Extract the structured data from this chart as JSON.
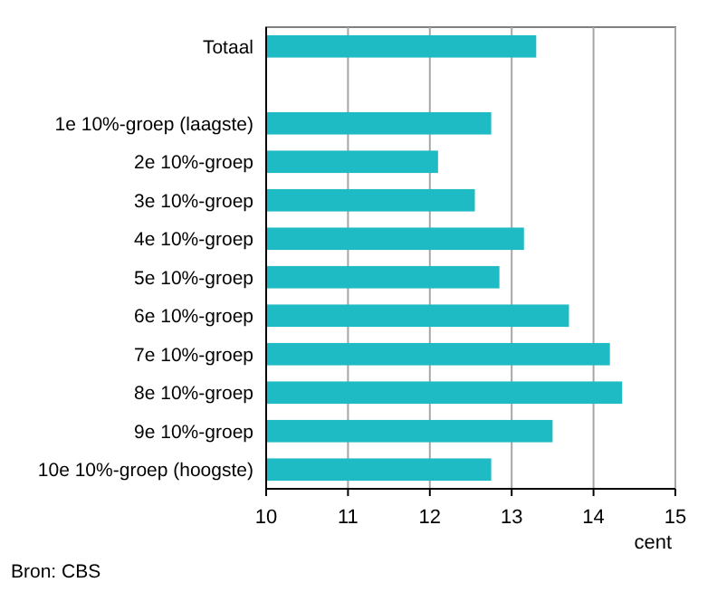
{
  "chart_data": {
    "type": "bar",
    "orientation": "horizontal",
    "categories": [
      "Totaal",
      null,
      "1e 10%-groep (laagste)",
      "2e 10%-groep",
      "3e 10%-groep",
      "4e 10%-groep",
      "5e 10%-groep",
      "6e 10%-groep",
      "7e 10%-groep",
      "8e 10%-groep",
      "9e 10%-groep",
      "10e 10%-groep (hoogste)"
    ],
    "values": [
      13.3,
      null,
      12.75,
      12.1,
      12.55,
      13.15,
      12.85,
      13.7,
      14.2,
      14.35,
      13.5,
      12.75
    ],
    "color": "#1ebbc4",
    "xlim": [
      10,
      15
    ],
    "xticks": [
      10,
      11,
      12,
      13,
      14,
      15
    ],
    "xlabel": "cent",
    "grid": "x",
    "annotations": [
      "Bron: CBS"
    ]
  }
}
